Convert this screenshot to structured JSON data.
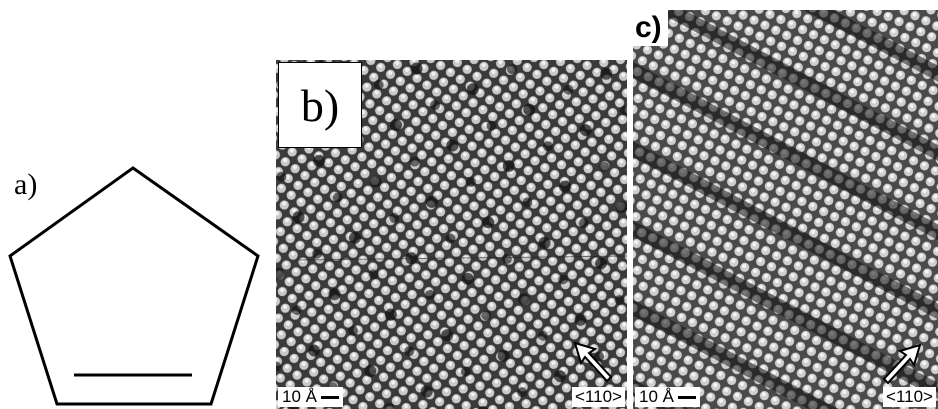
{
  "panel_a": {
    "label": "a)"
  },
  "panel_b": {
    "label": "b)",
    "scale": "10 Å",
    "direction": "<110>"
  },
  "panel_c": {
    "label": "c)",
    "scale": "10 Å",
    "direction": "<110>"
  },
  "colors": {
    "background": "#ffffff",
    "stroke": "#000000"
  }
}
